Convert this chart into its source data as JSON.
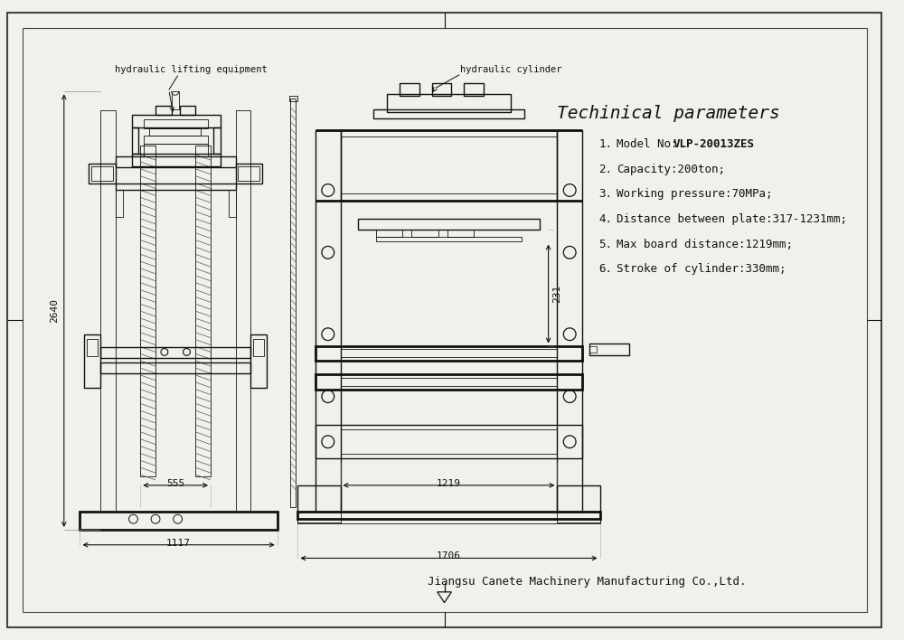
{
  "bg_color": "#f2f0ec",
  "line_color": "#111111",
  "title": "Techinical parameters",
  "params": [
    {
      "num": "1.",
      "label": "Model No: ",
      "value": "VLP-20013ZES",
      "bold": true
    },
    {
      "num": "2.",
      "label": "Capacity:200ton;",
      "value": "",
      "bold": false
    },
    {
      "num": "3.",
      "label": "Working pressure:70MPa;",
      "value": "",
      "bold": false
    },
    {
      "num": "4.",
      "label": "Distance between plate:317-1231mm;",
      "value": "",
      "bold": false
    },
    {
      "num": "5.",
      "label": "Max board distance:1219mm;",
      "value": "",
      "bold": false
    },
    {
      "num": "6.",
      "label": "Stroke of cylinder:330mm;",
      "value": "",
      "bold": false
    }
  ],
  "company": "Jiangsu Canete Machinery Manufacturing Co.,Ltd.",
  "label_hyd_lift": "hydraulic lifting equipment",
  "label_hyd_cyl": "hydraulic cylinder",
  "dim_2640": "2640",
  "dim_555": "555",
  "dim_1117": "1117",
  "dim_231": "231",
  "dim_1219": "1219",
  "dim_1706": "1706"
}
